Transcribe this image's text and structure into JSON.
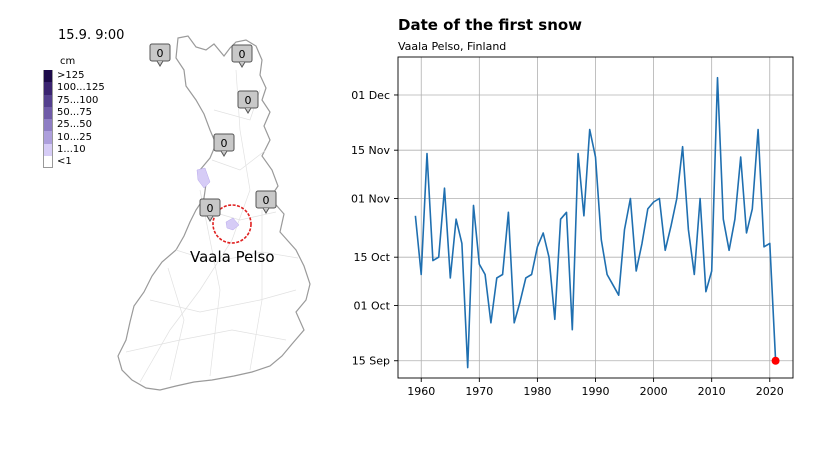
{
  "map": {
    "timestamp": "15.9. 9:00",
    "legend_title": "cm",
    "legend": [
      {
        "label": ">125",
        "color": "#1d0b4a"
      },
      {
        "label": "100...125",
        "color": "#3a2470"
      },
      {
        "label": "75...100",
        "color": "#54408e"
      },
      {
        "label": "50...75",
        "color": "#6f5ba8"
      },
      {
        "label": "25...50",
        "color": "#8e7ec4"
      },
      {
        "label": "10...25",
        "color": "#ad9fdc"
      },
      {
        "label": "1...10",
        "color": "#d6ccf6"
      },
      {
        "label": "<1",
        "color": "#ffffff"
      }
    ],
    "snow_readings": [
      "0",
      "0",
      "0",
      "0",
      "0",
      "0"
    ],
    "station_label": "Vaala Pelso",
    "highlight_color": "#e02020"
  },
  "chart_data": {
    "type": "line",
    "title": "Date of the first snow",
    "subtitle": "Vaala Pelso, Finland",
    "xlabel": "",
    "ylabel": "",
    "xlim": [
      1956,
      2024
    ],
    "x_ticks": [
      1960,
      1970,
      1980,
      1990,
      2000,
      2010,
      2020
    ],
    "ylim": [
      "Sep 10",
      "Dec 12"
    ],
    "y_ticks": [
      "15 Sep",
      "01 Oct",
      "15 Oct",
      "01 Nov",
      "15 Nov",
      "01 Dec"
    ],
    "grid": true,
    "line_color": "#1f6fb0",
    "series": [
      {
        "x": [
          1959,
          1960,
          1961,
          1962,
          1963,
          1964,
          1965,
          1966,
          1967,
          1968,
          1969,
          1970,
          1971,
          1972,
          1973,
          1974,
          1975,
          1976,
          1977,
          1978,
          1979,
          1980,
          1981,
          1982,
          1983,
          1984,
          1985,
          1986,
          1987,
          1988,
          1989,
          1990,
          1991,
          1992,
          1993,
          1994,
          1995,
          1996,
          1997,
          1998,
          1999,
          2000,
          2001,
          2002,
          2003,
          2004,
          2005,
          2006,
          2007,
          2008,
          2009,
          2010,
          2011,
          2012,
          2013,
          2014,
          2015,
          2016,
          2017,
          2018,
          2019,
          2020,
          2021
        ],
        "values": [
          "Oct 27",
          "Oct 10",
          "Nov 14",
          "Oct 14",
          "Oct 15",
          "Nov 4",
          "Oct 9",
          "Oct 26",
          "Oct 19",
          "Sep 13",
          "Oct 30",
          "Oct 13",
          "Oct 10",
          "Sep 26",
          "Oct 9",
          "Oct 10",
          "Oct 28",
          "Sep 26",
          "Oct 2",
          "Oct 9",
          "Oct 10",
          "Oct 18",
          "Oct 22",
          "Oct 15",
          "Sep 27",
          "Oct 26",
          "Oct 28",
          "Sep 24",
          "Nov 14",
          "Oct 27",
          "Nov 21",
          "Nov 13",
          "Oct 20",
          "Oct 10",
          "Oct 7",
          "Oct 4",
          "Oct 23",
          "Nov 1",
          "Oct 11",
          "Oct 19",
          "Oct 29",
          "Oct 31",
          "Nov 1",
          "Oct 17",
          "Oct 24",
          "Nov 1",
          "Nov 16",
          "Oct 23",
          "Oct 10",
          "Nov 1",
          "Oct 5",
          "Oct 11",
          "Dec 6",
          "Oct 26",
          "Oct 17",
          "Oct 26",
          "Nov 13",
          "Oct 22",
          "Oct 29",
          "Nov 21",
          "Oct 18",
          "Oct 19",
          "Sep 15"
        ]
      }
    ],
    "highlight_point": {
      "x": 2021,
      "value": "Sep 15",
      "color": "#ff0000"
    }
  }
}
